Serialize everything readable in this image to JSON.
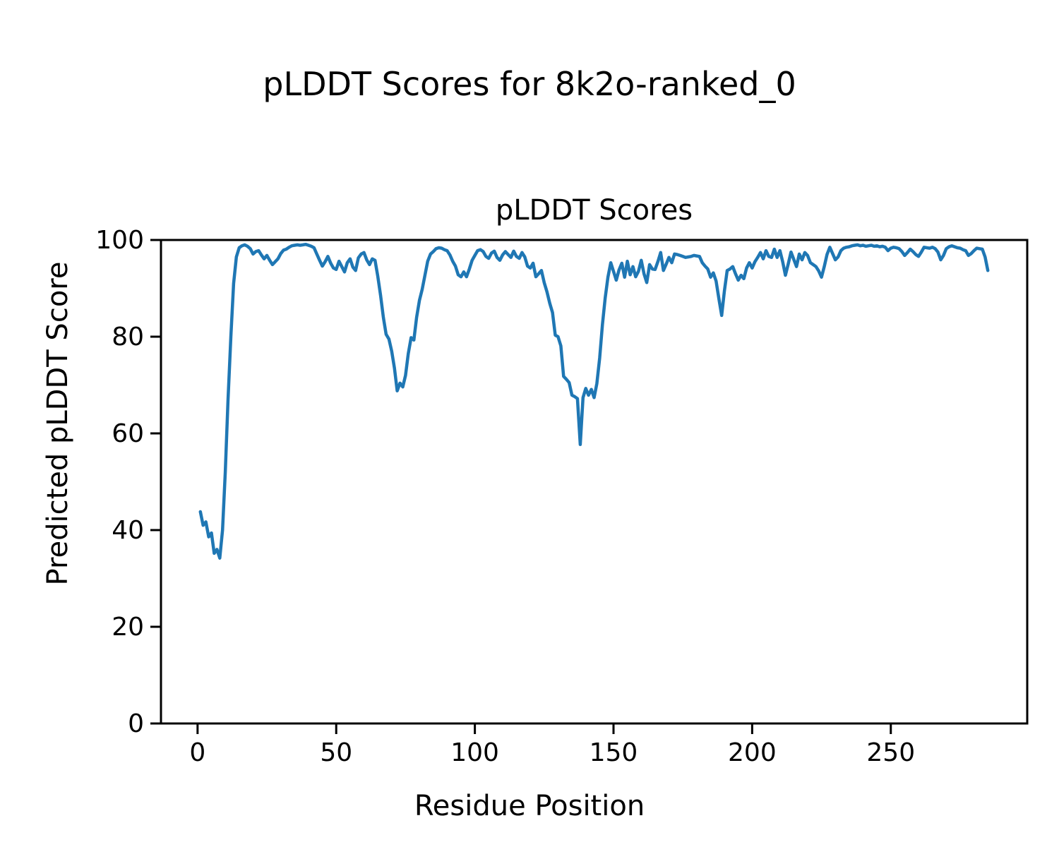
{
  "figure": {
    "suptitle": "pLDDT Scores for 8k2o-ranked_0",
    "background_color": "#ffffff",
    "text_color": "#000000"
  },
  "chart_data": {
    "type": "line",
    "title": "pLDDT Scores",
    "xlabel": "Residue Position",
    "ylabel": "Predicted pLDDT Score",
    "xlim": [
      -13.2,
      299.2
    ],
    "ylim": [
      0,
      100
    ],
    "xticks": [
      0,
      50,
      100,
      150,
      200,
      250
    ],
    "yticks": [
      0,
      20,
      40,
      60,
      80,
      100
    ],
    "grid": false,
    "legend_position": "none",
    "spine_color": "#000000",
    "series": [
      {
        "name": "pLDDT",
        "color": "#1f77b4",
        "x_start": 1,
        "y": [
          43.8,
          41.0,
          41.7,
          38.6,
          39.4,
          35.2,
          36.0,
          34.2,
          40.0,
          52.0,
          67.0,
          80.0,
          91.0,
          96.5,
          98.4,
          98.8,
          99.0,
          98.7,
          98.2,
          97.1,
          97.6,
          97.8,
          96.9,
          96.1,
          96.8,
          95.8,
          94.9,
          95.5,
          96.1,
          97.2,
          97.9,
          98.1,
          98.5,
          98.8,
          98.9,
          99.0,
          98.9,
          99.0,
          99.1,
          98.9,
          98.7,
          98.4,
          97.1,
          95.8,
          94.6,
          95.5,
          96.6,
          95.2,
          94.2,
          93.9,
          95.6,
          94.5,
          93.4,
          95.3,
          96.1,
          94.4,
          93.7,
          96.3,
          97.1,
          97.4,
          95.9,
          94.9,
          96.1,
          95.8,
          92.5,
          88.5,
          84.0,
          80.5,
          79.5,
          77.0,
          73.5,
          68.8,
          70.4,
          69.6,
          72.0,
          76.5,
          79.8,
          79.3,
          84.0,
          87.5,
          89.8,
          92.7,
          95.6,
          97.1,
          97.6,
          98.2,
          98.4,
          98.3,
          98.0,
          97.8,
          96.9,
          95.6,
          94.6,
          92.8,
          92.4,
          93.4,
          92.4,
          94.0,
          95.8,
          96.8,
          97.8,
          98.0,
          97.6,
          96.6,
          96.2,
          97.3,
          97.7,
          96.4,
          95.8,
          96.9,
          97.6,
          97.0,
          96.4,
          97.7,
          96.6,
          96.2,
          97.4,
          96.5,
          94.6,
          94.2,
          95.2,
          92.4,
          93.0,
          93.7,
          91.2,
          89.3,
          86.9,
          85.0,
          80.3,
          80.0,
          78.1,
          71.8,
          71.2,
          70.5,
          67.9,
          67.6,
          67.2,
          57.7,
          67.4,
          69.3,
          67.9,
          69.1,
          67.4,
          70.3,
          75.6,
          82.5,
          88.0,
          92.3,
          95.3,
          93.5,
          91.7,
          93.8,
          95.2,
          92.3,
          95.6,
          92.8,
          94.5,
          92.4,
          93.5,
          95.8,
          93.0,
          91.2,
          94.9,
          94.0,
          93.9,
          95.5,
          97.4,
          93.7,
          95.0,
          96.4,
          95.3,
          97.1,
          97.0,
          96.8,
          96.6,
          96.4,
          96.5,
          96.6,
          96.8,
          96.7,
          96.6,
          95.3,
          94.6,
          94.0,
          92.3,
          93.2,
          91.5,
          87.9,
          84.4,
          89.5,
          93.7,
          94.0,
          94.5,
          93.0,
          91.7,
          92.7,
          92.0,
          94.2,
          95.3,
          94.2,
          95.5,
          96.4,
          97.4,
          96.1,
          97.8,
          96.6,
          96.4,
          98.1,
          96.4,
          97.8,
          95.5,
          92.7,
          95.0,
          97.5,
          96.0,
          94.5,
          97.1,
          95.9,
          97.4,
          96.8,
          95.3,
          94.9,
          94.5,
          93.6,
          92.3,
          94.5,
          97.0,
          98.5,
          97.2,
          95.9,
          96.5,
          97.8,
          98.3,
          98.5,
          98.6,
          98.8,
          98.9,
          99.0,
          98.8,
          98.9,
          98.7,
          98.8,
          98.9,
          98.7,
          98.8,
          98.6,
          98.7,
          98.5,
          97.8,
          98.3,
          98.5,
          98.4,
          98.2,
          97.6,
          96.8,
          97.4,
          98.1,
          97.6,
          97.0,
          96.6,
          97.5,
          98.5,
          98.4,
          98.3,
          98.5,
          98.2,
          97.5,
          95.9,
          96.8,
          98.2,
          98.6,
          98.8,
          98.6,
          98.4,
          98.3,
          98.0,
          97.8,
          96.8,
          97.2,
          97.8,
          98.3,
          98.2,
          98.1,
          96.5,
          93.7
        ]
      }
    ]
  }
}
